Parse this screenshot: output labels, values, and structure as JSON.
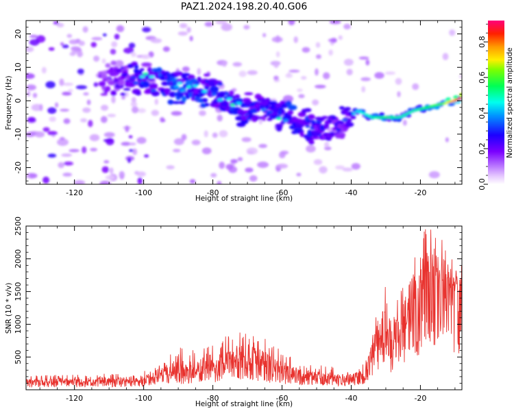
{
  "title": "PAZ1.2024.198.20.40.G06",
  "chart_data": [
    {
      "type": "heatmap",
      "xlabel": "Height of straight line (km)",
      "ylabel": "Frequency (Hz)",
      "xlim": [
        -134,
        -8
      ],
      "ylim": [
        -25,
        24
      ],
      "xticks": [
        -120,
        -100,
        -80,
        -60,
        -40,
        -20
      ],
      "yticks": [
        -20,
        -10,
        0,
        10,
        20
      ],
      "colorbar": {
        "label": "Normalized spectral amplitude",
        "range": [
          0,
          0.92
        ],
        "ticks": [
          0.0,
          0.2,
          0.4,
          0.6,
          0.8
        ],
        "colormap": "gist_rainbow_r (violet → blue → cyan → green → yellow → red)"
      },
      "ridge": {
        "description": "Dominant spectral ridge (Doppler trace) descending from ~+8 Hz near -100 km to ~-10 Hz near -45 km, then rising to ~+1 Hz near -8 km",
        "x": [
          -110,
          -100,
          -90,
          -80,
          -72,
          -65,
          -58,
          -52,
          -46,
          -42,
          -38,
          -34,
          -30,
          -26,
          -22,
          -18,
          -14,
          -10,
          -8
        ],
        "y": [
          6,
          7,
          4,
          2,
          -2,
          -3,
          -5,
          -8,
          -9,
          -6,
          -3,
          -5,
          -5,
          -5,
          -3,
          -2,
          -1,
          0,
          1
        ],
        "amplitude": [
          0.25,
          0.45,
          0.5,
          0.45,
          0.45,
          0.4,
          0.45,
          0.45,
          0.4,
          0.35,
          0.45,
          0.5,
          0.55,
          0.5,
          0.5,
          0.55,
          0.6,
          0.8,
          0.92
        ]
      }
    },
    {
      "type": "line",
      "xlabel": "Height of straight line (km)",
      "ylabel": "SNR (10 * v/v)",
      "xlim": [
        -134,
        -8
      ],
      "ylim": [
        0,
        2500
      ],
      "xticks": [
        -120,
        -100,
        -80,
        -60,
        -40,
        -20
      ],
      "yticks": [
        500,
        1000,
        1500,
        2000,
        2500
      ],
      "color": "#e8322e",
      "envelope": {
        "x": [
          -134,
          -120,
          -105,
          -100,
          -95,
          -90,
          -85,
          -80,
          -75,
          -70,
          -65,
          -60,
          -55,
          -50,
          -45,
          -40,
          -36,
          -34,
          -32,
          -30,
          -28,
          -26,
          -24,
          -22,
          -20,
          -18,
          -16,
          -14,
          -12,
          -10,
          -8
        ],
        "mean": [
          110,
          110,
          120,
          150,
          220,
          250,
          260,
          320,
          400,
          430,
          330,
          250,
          200,
          170,
          160,
          160,
          200,
          450,
          750,
          900,
          700,
          800,
          950,
          1200,
          1550,
          1750,
          1750,
          1700,
          1600,
          1550,
          1500
        ],
        "peak": [
          220,
          230,
          260,
          320,
          450,
          680,
          600,
          750,
          900,
          960,
          800,
          600,
          430,
          380,
          350,
          320,
          400,
          1100,
          1400,
          1650,
          1300,
          1500,
          2000,
          2250,
          2300,
          2550,
          2350,
          2450,
          2200,
          1950,
          1900
        ]
      }
    }
  ]
}
